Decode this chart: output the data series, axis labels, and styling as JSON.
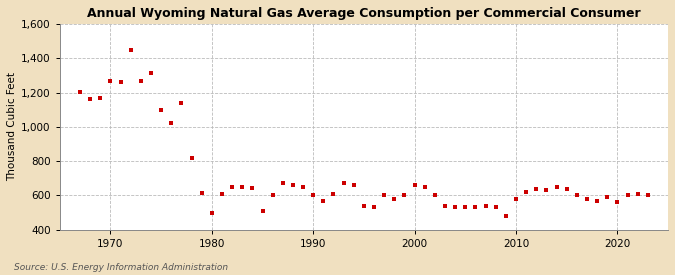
{
  "title": "Annual Wyoming Natural Gas Average Consumption per Commercial Consumer",
  "ylabel": "Thousand Cubic Feet",
  "source": "Source: U.S. Energy Information Administration",
  "background_color": "#f0e0c0",
  "plot_background_color": "#ffffff",
  "marker_color": "#cc0000",
  "years": [
    1967,
    1968,
    1969,
    1970,
    1971,
    1972,
    1973,
    1974,
    1975,
    1976,
    1977,
    1978,
    1979,
    1980,
    1981,
    1982,
    1983,
    1984,
    1985,
    1986,
    1987,
    1988,
    1989,
    1990,
    1991,
    1992,
    1993,
    1994,
    1995,
    1996,
    1997,
    1998,
    1999,
    2000,
    2001,
    2002,
    2003,
    2004,
    2005,
    2006,
    2007,
    2008,
    2009,
    2010,
    2011,
    2012,
    2013,
    2014,
    2015,
    2016,
    2017,
    2018,
    2019,
    2020,
    2021,
    2022,
    2023
  ],
  "values": [
    1205,
    1160,
    1170,
    1270,
    1260,
    1450,
    1270,
    1315,
    1100,
    1020,
    1140,
    820,
    615,
    500,
    610,
    650,
    650,
    645,
    510,
    600,
    670,
    660,
    650,
    605,
    570,
    610,
    670,
    660,
    540,
    530,
    600,
    580,
    600,
    660,
    650,
    600,
    540,
    530,
    530,
    530,
    540,
    530,
    480,
    580,
    620,
    640,
    630,
    650,
    640,
    600,
    580,
    570,
    590,
    560,
    600,
    610,
    600
  ],
  "ylim": [
    400,
    1600
  ],
  "yticks": [
    400,
    600,
    800,
    1000,
    1200,
    1400,
    1600
  ],
  "xlim": [
    1965,
    2025
  ],
  "xticks": [
    1970,
    1980,
    1990,
    2000,
    2010,
    2020
  ],
  "grid_color": "#bbbbbb",
  "title_fontsize": 9,
  "label_fontsize": 7.5,
  "tick_fontsize": 7.5,
  "source_fontsize": 6.5
}
